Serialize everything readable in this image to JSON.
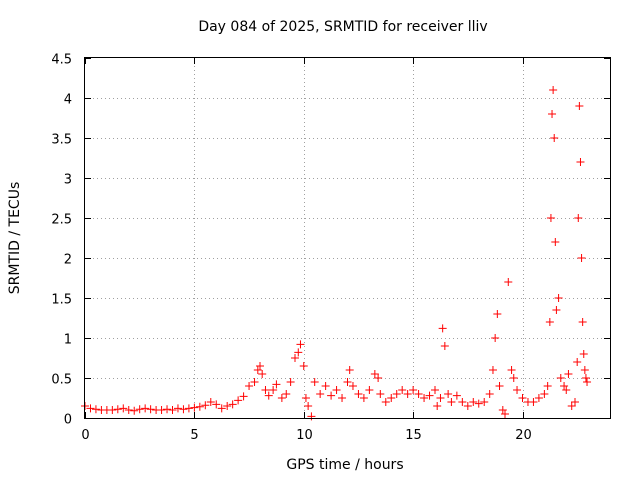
{
  "chart_data": {
    "type": "scatter",
    "title": "Day 084 of 2025, SRMTID for receiver lliv",
    "xlabel": "GPS time / hours",
    "ylabel": "SRMTID / TECUs",
    "xlim": [
      0,
      24
    ],
    "ylim": [
      0,
      4.5
    ],
    "x_ticks": [
      0,
      5,
      10,
      15,
      20
    ],
    "x_tick_labels": [
      "0",
      "5",
      "10",
      "15",
      "20"
    ],
    "y_ticks": [
      0,
      0.5,
      1,
      1.5,
      2,
      2.5,
      3,
      3.5,
      4,
      4.5
    ],
    "y_tick_labels": [
      "0",
      "0.5",
      "1",
      "1.5",
      "2",
      "2.5",
      "3",
      "3.5",
      "4",
      "4.5"
    ],
    "grid": true,
    "marker": "plus",
    "color": "#ff0000",
    "series": [
      {
        "name": "SRMTID",
        "points": [
          [
            0.0,
            0.15
          ],
          [
            0.25,
            0.12
          ],
          [
            0.5,
            0.11
          ],
          [
            0.75,
            0.1
          ],
          [
            1.0,
            0.1
          ],
          [
            1.25,
            0.1
          ],
          [
            1.5,
            0.11
          ],
          [
            1.75,
            0.12
          ],
          [
            2.0,
            0.1
          ],
          [
            2.25,
            0.09
          ],
          [
            2.5,
            0.11
          ],
          [
            2.75,
            0.12
          ],
          [
            3.0,
            0.11
          ],
          [
            3.25,
            0.1
          ],
          [
            3.5,
            0.1
          ],
          [
            3.75,
            0.11
          ],
          [
            4.0,
            0.1
          ],
          [
            4.25,
            0.12
          ],
          [
            4.5,
            0.11
          ],
          [
            4.75,
            0.12
          ],
          [
            5.0,
            0.13
          ],
          [
            5.25,
            0.14
          ],
          [
            5.5,
            0.16
          ],
          [
            5.75,
            0.2
          ],
          [
            6.0,
            0.17
          ],
          [
            6.25,
            0.12
          ],
          [
            6.5,
            0.15
          ],
          [
            6.75,
            0.17
          ],
          [
            7.0,
            0.22
          ],
          [
            7.25,
            0.27
          ],
          [
            7.5,
            0.4
          ],
          [
            7.75,
            0.45
          ],
          [
            7.9,
            0.6
          ],
          [
            8.0,
            0.65
          ],
          [
            8.1,
            0.55
          ],
          [
            8.25,
            0.35
          ],
          [
            8.4,
            0.28
          ],
          [
            8.6,
            0.35
          ],
          [
            8.75,
            0.42
          ],
          [
            9.0,
            0.25
          ],
          [
            9.2,
            0.3
          ],
          [
            9.4,
            0.45
          ],
          [
            9.6,
            0.75
          ],
          [
            9.75,
            0.82
          ],
          [
            9.85,
            0.92
          ],
          [
            10.0,
            0.65
          ],
          [
            10.1,
            0.25
          ],
          [
            10.2,
            0.15
          ],
          [
            10.35,
            0.02
          ],
          [
            10.5,
            0.45
          ],
          [
            10.75,
            0.3
          ],
          [
            11.0,
            0.4
          ],
          [
            11.25,
            0.28
          ],
          [
            11.5,
            0.35
          ],
          [
            11.75,
            0.25
          ],
          [
            12.0,
            0.45
          ],
          [
            12.1,
            0.6
          ],
          [
            12.25,
            0.4
          ],
          [
            12.5,
            0.3
          ],
          [
            12.75,
            0.25
          ],
          [
            13.0,
            0.35
          ],
          [
            13.25,
            0.55
          ],
          [
            13.4,
            0.5
          ],
          [
            13.5,
            0.3
          ],
          [
            13.75,
            0.2
          ],
          [
            14.0,
            0.25
          ],
          [
            14.25,
            0.3
          ],
          [
            14.5,
            0.35
          ],
          [
            14.75,
            0.3
          ],
          [
            15.0,
            0.35
          ],
          [
            15.25,
            0.3
          ],
          [
            15.5,
            0.25
          ],
          [
            15.75,
            0.28
          ],
          [
            16.0,
            0.35
          ],
          [
            16.1,
            0.15
          ],
          [
            16.25,
            0.25
          ],
          [
            16.35,
            1.12
          ],
          [
            16.45,
            0.9
          ],
          [
            16.6,
            0.3
          ],
          [
            16.75,
            0.2
          ],
          [
            17.0,
            0.28
          ],
          [
            17.25,
            0.2
          ],
          [
            17.5,
            0.15
          ],
          [
            17.75,
            0.2
          ],
          [
            18.0,
            0.18
          ],
          [
            18.25,
            0.2
          ],
          [
            18.5,
            0.3
          ],
          [
            18.65,
            0.6
          ],
          [
            18.75,
            1.0
          ],
          [
            18.85,
            1.3
          ],
          [
            18.95,
            0.4
          ],
          [
            19.1,
            0.1
          ],
          [
            19.2,
            0.05
          ],
          [
            19.35,
            1.7
          ],
          [
            19.5,
            0.6
          ],
          [
            19.6,
            0.5
          ],
          [
            19.75,
            0.35
          ],
          [
            20.0,
            0.25
          ],
          [
            20.25,
            0.2
          ],
          [
            20.5,
            0.2
          ],
          [
            20.75,
            0.25
          ],
          [
            21.0,
            0.3
          ],
          [
            21.15,
            0.4
          ],
          [
            21.25,
            1.2
          ],
          [
            21.3,
            2.5
          ],
          [
            21.35,
            3.8
          ],
          [
            21.4,
            4.1
          ],
          [
            21.45,
            3.5
          ],
          [
            21.5,
            2.2
          ],
          [
            21.55,
            1.35
          ],
          [
            21.65,
            1.5
          ],
          [
            21.75,
            0.5
          ],
          [
            21.9,
            0.4
          ],
          [
            22.0,
            0.35
          ],
          [
            22.1,
            0.55
          ],
          [
            22.25,
            0.15
          ],
          [
            22.4,
            0.2
          ],
          [
            22.5,
            0.7
          ],
          [
            22.55,
            2.5
          ],
          [
            22.6,
            3.9
          ],
          [
            22.65,
            3.2
          ],
          [
            22.7,
            2.0
          ],
          [
            22.75,
            1.2
          ],
          [
            22.8,
            0.8
          ],
          [
            22.85,
            0.6
          ],
          [
            22.9,
            0.5
          ],
          [
            22.95,
            0.45
          ]
        ]
      }
    ]
  }
}
